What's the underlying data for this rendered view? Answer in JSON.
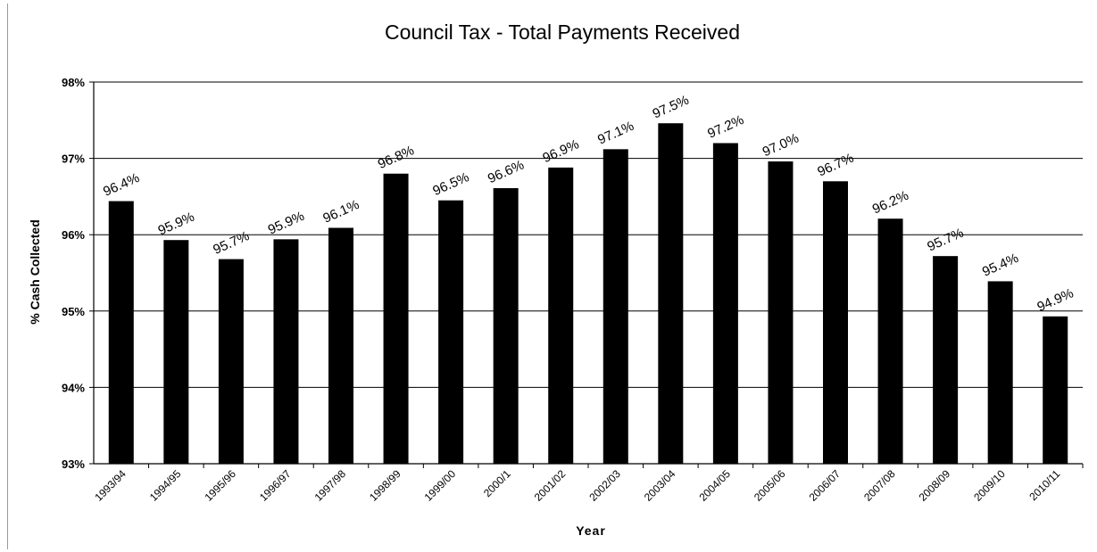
{
  "chart_data": {
    "type": "bar",
    "title": "Council Tax - Total Payments Received",
    "xlabel": "Year",
    "ylabel": "% Cash Collected",
    "ylim": [
      93,
      98
    ],
    "yticks": [
      "93%",
      "94%",
      "95%",
      "96%",
      "97%",
      "98%"
    ],
    "grid": "horizontal",
    "categories": [
      "1993/94",
      "1994/95",
      "1995/96",
      "1996/97",
      "1997/98",
      "1998/99",
      "1999/00",
      "2000/1",
      "2001/02",
      "2002/03",
      "2003/04",
      "2004/05",
      "2005/06",
      "2006/07",
      "2007/08",
      "2008/09",
      "2009/10",
      "2010/11"
    ],
    "values": [
      96.44,
      95.93,
      95.68,
      95.94,
      96.09,
      96.8,
      96.45,
      96.61,
      96.88,
      97.12,
      97.46,
      97.2,
      96.96,
      96.7,
      96.21,
      95.72,
      95.39,
      94.93
    ],
    "data_labels": [
      "96.4%",
      "95.9%",
      "95.7%",
      "95.9%",
      "96.1%",
      "96.8%",
      "96.5%",
      "96.6%",
      "96.9%",
      "97.1%",
      "97.5%",
      "97.2%",
      "97.0%",
      "96.7%",
      "96.2%",
      "95.7%",
      "95.4%",
      "94.9%"
    ],
    "bar_color": "#000000"
  }
}
